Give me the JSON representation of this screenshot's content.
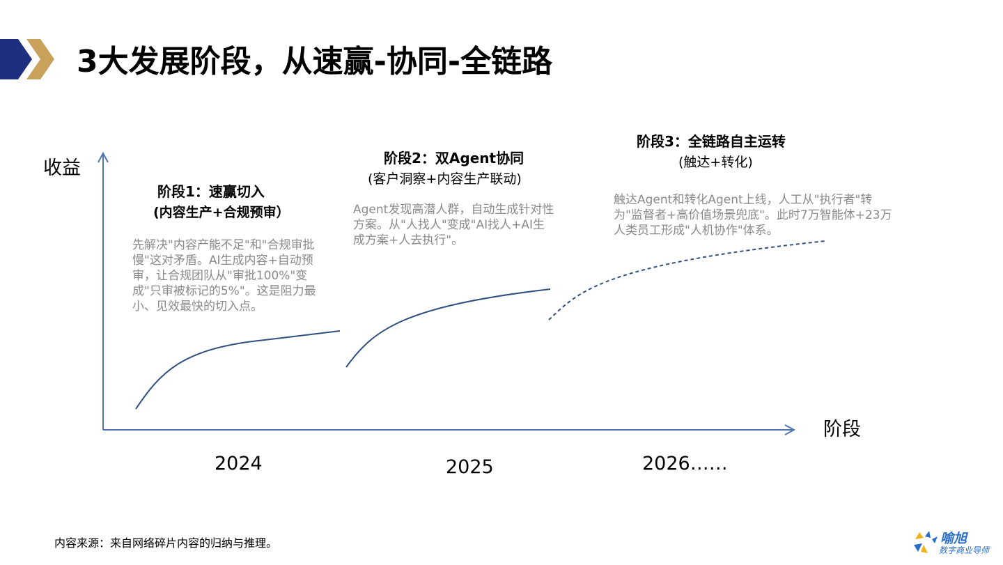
{
  "page": {
    "title": "3大发展阶段，从速赢-协同-全链路"
  },
  "axes": {
    "ylabel": "收益",
    "xlabel": "阶段"
  },
  "stages": [
    {
      "title": "阶段1：速赢切入",
      "subtitle": "(内容生产+合规预审）",
      "desc": "先解决\"内容产能不足\"和\"合规审批慢\"这对矛盾。AI生成内容+自动预审，让合规团队从\"审批100%\"变成\"只审被标记的5%\"。这是阻力最小、见效最快的切入点。",
      "year": "2024"
    },
    {
      "title": "阶段2：双Agent协同",
      "subtitle": "(客户洞察+内容生产联动)",
      "desc": "Agent发现高潜人群，自动生成针对性方案。从\"人找人\"变成\"AI找人+AI生成方案+人去执行\"。",
      "year": "2025"
    },
    {
      "title": "阶段3：全链路自主运转",
      "subtitle": "(触达+转化)",
      "desc": "触达Agent和转化Agent上线，人工从\"执行者\"转为\"监督者+高价值场景兜底\"。此时7万智能体+23万人类员工形成\"人机协作\"体系。",
      "year": "2026……"
    }
  ],
  "footer": {
    "source": "内容来源：来自网络碎片内容的归纳与推理。"
  },
  "logo": {
    "name": "喻旭",
    "tagline": "数字商业导师"
  },
  "colors": {
    "curve": "#2f4f7f",
    "axis": "#4f73b3",
    "desc_text": "#8a8a8a",
    "chevron_navy": "#1f2f7f",
    "chevron_gold": "#c9a15a",
    "logo_blue": "#2a6fc9",
    "logo_yellow": "#f2b21b"
  },
  "icons": {
    "title_marker": "double-chevron-icon",
    "logo_mark": "starburst-logo-icon"
  }
}
